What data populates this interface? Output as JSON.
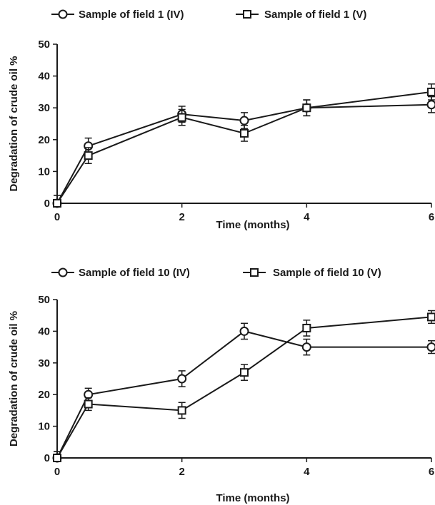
{
  "chart_data": [
    {
      "type": "line",
      "title": "",
      "xlabel": "Time (months)",
      "ylabel": "Degradation of crude oil %",
      "xlim": [
        0,
        6
      ],
      "ylim": [
        0,
        50
      ],
      "xticks": [
        0,
        2,
        4,
        6
      ],
      "yticks": [
        0,
        10,
        20,
        30,
        40,
        50
      ],
      "grid": false,
      "legend": "top",
      "colors": {
        "line": "#1a1a1a",
        "marker_fill": "#ffffff"
      },
      "series": [
        {
          "name": "Sample of field 1 (IV)",
          "marker": "circle",
          "x": [
            0,
            0.5,
            2,
            3,
            4,
            6
          ],
          "y": [
            0,
            18,
            28,
            26,
            30,
            31
          ],
          "err": [
            2.5,
            2.5,
            2.5,
            2.5,
            2.5,
            2.5
          ]
        },
        {
          "name": "Sample of field 1 (V)",
          "marker": "square",
          "x": [
            0,
            0.5,
            2,
            3,
            4,
            6
          ],
          "y": [
            0,
            15,
            27,
            22,
            30,
            35
          ],
          "err": [
            2.5,
            2.5,
            2.5,
            2.5,
            2.5,
            2.5
          ]
        }
      ]
    },
    {
      "type": "line",
      "title": "",
      "xlabel": "Time (months)",
      "ylabel": "Degradation of crude oil %",
      "xlim": [
        0,
        6
      ],
      "ylim": [
        0,
        50
      ],
      "xticks": [
        0,
        2,
        4,
        6
      ],
      "yticks": [
        0,
        10,
        20,
        30,
        40,
        50
      ],
      "grid": false,
      "legend": "top",
      "colors": {
        "line": "#1a1a1a",
        "marker_fill": "#ffffff"
      },
      "series": [
        {
          "name": "Sample of field 10 (IV)",
          "marker": "circle",
          "x": [
            0,
            0.5,
            2,
            3,
            4,
            6
          ],
          "y": [
            0,
            20,
            25,
            40,
            35,
            35
          ],
          "err": [
            2,
            2,
            2.5,
            2.5,
            2.5,
            2
          ]
        },
        {
          "name": "Sample of field 10 (V)",
          "marker": "square",
          "x": [
            0,
            0.5,
            2,
            3,
            4,
            6
          ],
          "y": [
            0,
            17,
            15,
            27,
            41,
            44.5
          ],
          "err": [
            2,
            2,
            2.5,
            2.5,
            2.5,
            2
          ]
        }
      ]
    }
  ]
}
